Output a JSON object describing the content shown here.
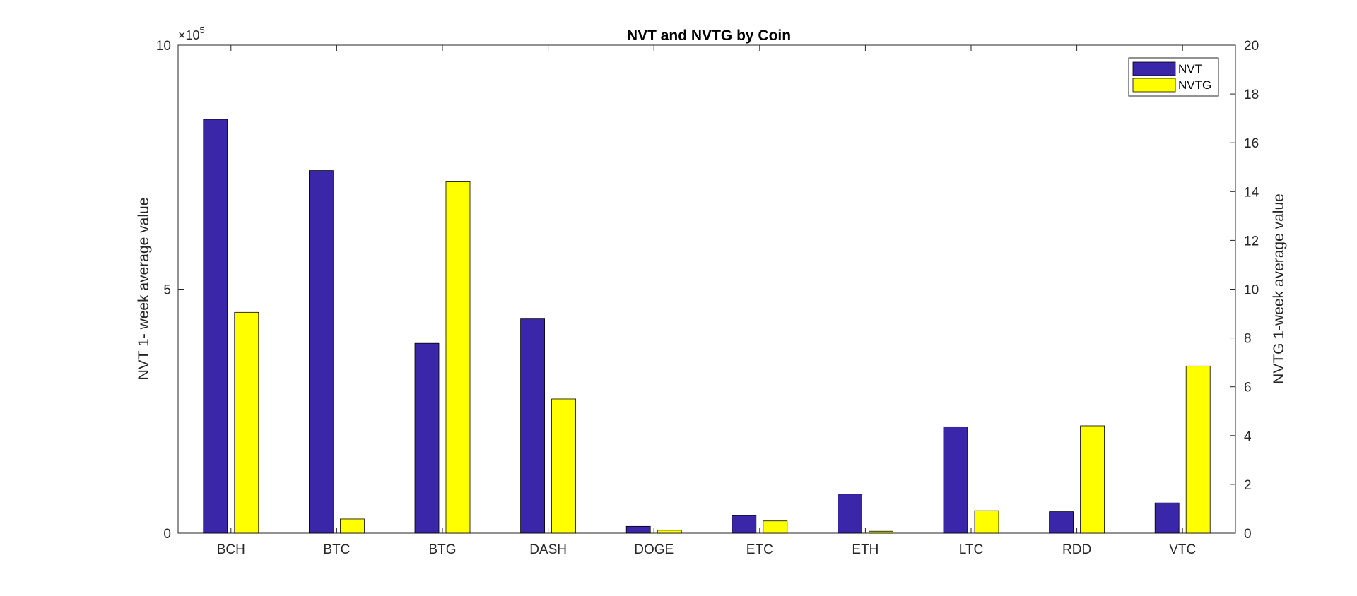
{
  "chart_data": {
    "type": "bar",
    "title": "NVT and NVTG by Coin",
    "categories": [
      "BCH",
      "BTC",
      "BTG",
      "DASH",
      "DOGE",
      "ETC",
      "ETH",
      "LTC",
      "RDD",
      "VTC"
    ],
    "series": [
      {
        "name": "NVT",
        "axis": "left",
        "color": "#3a26a8",
        "values": [
          848000,
          743000,
          389000,
          439000,
          14000,
          36000,
          80000,
          218000,
          44000,
          62000
        ]
      },
      {
        "name": "NVTG",
        "axis": "right",
        "color": "#ffff00",
        "values": [
          9.05,
          0.58,
          14.4,
          5.5,
          0.12,
          0.5,
          0.08,
          0.92,
          4.4,
          6.85
        ]
      }
    ],
    "y_left": {
      "label": "NVT 1- week average value",
      "ylim": [
        0,
        1000000
      ],
      "ticks": [
        0,
        500000,
        1000000
      ],
      "tick_labels": [
        "0",
        "5",
        "10"
      ],
      "exponent_base": "×10",
      "exponent_power": "5"
    },
    "y_right": {
      "label": "NVTG 1-week average value",
      "ylim": [
        0,
        20
      ],
      "ticks": [
        0,
        2,
        4,
        6,
        8,
        10,
        12,
        14,
        16,
        18,
        20
      ],
      "tick_labels": [
        "0",
        "2",
        "4",
        "6",
        "8",
        "10",
        "12",
        "14",
        "16",
        "18",
        "20"
      ]
    },
    "xlabel": "",
    "grid": false,
    "legend": {
      "position": "top-right",
      "entries": [
        "NVT",
        "NVTG"
      ]
    }
  }
}
